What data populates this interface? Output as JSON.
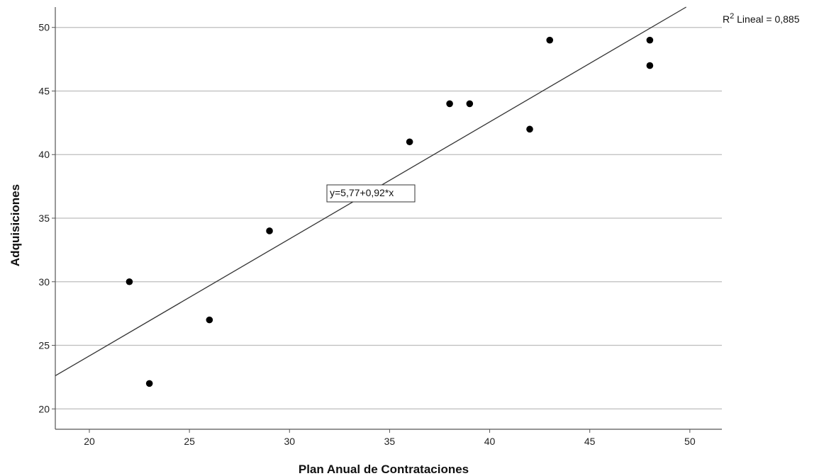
{
  "chart_data": {
    "type": "scatter",
    "xlabel": "Plan Anual de Contrataciones",
    "ylabel": "Adquisiciones",
    "xlim": [
      18.3,
      51.6
    ],
    "ylim": [
      18.4,
      51.6
    ],
    "xticks": [
      20,
      25,
      30,
      35,
      40,
      45,
      50
    ],
    "yticks": [
      20,
      25,
      30,
      35,
      40,
      45,
      50
    ],
    "grid": "horizontal",
    "points": [
      {
        "x": 22,
        "y": 30
      },
      {
        "x": 23,
        "y": 22
      },
      {
        "x": 26,
        "y": 27
      },
      {
        "x": 29,
        "y": 34
      },
      {
        "x": 36,
        "y": 41
      },
      {
        "x": 38,
        "y": 44
      },
      {
        "x": 39,
        "y": 44
      },
      {
        "x": 42,
        "y": 42
      },
      {
        "x": 43,
        "y": 49
      },
      {
        "x": 48,
        "y": 49
      },
      {
        "x": 48,
        "y": 47
      }
    ],
    "fit_line": {
      "intercept": 5.77,
      "slope": 0.92,
      "label": "y=5,77+0,92*x"
    },
    "r2_label": {
      "prefix": "R",
      "sup": "2",
      "text": " Lineal = 0,885"
    },
    "colors": {
      "points": "#000000",
      "line": "#333333",
      "grid": "#bdbdbd",
      "axis": "#555555"
    }
  }
}
